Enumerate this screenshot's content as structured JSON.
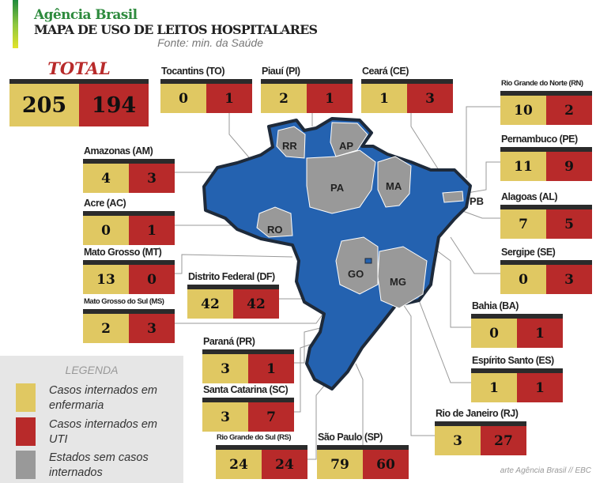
{
  "header": {
    "brand": "Agência Brasil",
    "title": "MAPA DE USO DE LEITOS HOSPITALARES",
    "source": "Fonte: min. da Saúde"
  },
  "total": {
    "label": "TOTAL",
    "enfermaria": 205,
    "uti": 194
  },
  "states": [
    {
      "code": "TO",
      "label": "Tocantins (TO)",
      "enfermaria": 0,
      "uti": 1
    },
    {
      "code": "PI",
      "label": "Piauí (PI)",
      "enfermaria": 2,
      "uti": 1
    },
    {
      "code": "CE",
      "label": "Ceará (CE)",
      "enfermaria": 1,
      "uti": 3
    },
    {
      "code": "RN",
      "label": "Rio Grande do Norte (RN)",
      "enfermaria": 10,
      "uti": 2
    },
    {
      "code": "PE",
      "label": "Pernambuco (PE)",
      "enfermaria": 11,
      "uti": 9
    },
    {
      "code": "AL",
      "label": "Alagoas (AL)",
      "enfermaria": 7,
      "uti": 5
    },
    {
      "code": "SE",
      "label": "Sergipe (SE)",
      "enfermaria": 0,
      "uti": 3
    },
    {
      "code": "BA",
      "label": "Bahia (BA)",
      "enfermaria": 0,
      "uti": 1
    },
    {
      "code": "ES",
      "label": "Espírito Santo (ES)",
      "enfermaria": 1,
      "uti": 1
    },
    {
      "code": "RJ",
      "label": "Rio de Janeiro (RJ)",
      "enfermaria": 3,
      "uti": 27
    },
    {
      "code": "SP",
      "label": "São Paulo (SP)",
      "enfermaria": 79,
      "uti": 60
    },
    {
      "code": "RS",
      "label": "Rio Grande do Sul (RS)",
      "enfermaria": 24,
      "uti": 24
    },
    {
      "code": "SC",
      "label": "Santa Catarina (SC)",
      "enfermaria": 3,
      "uti": 7
    },
    {
      "code": "PR",
      "label": "Paraná (PR)",
      "enfermaria": 3,
      "uti": 1
    },
    {
      "code": "DF",
      "label": "Distrito Federal (DF)",
      "enfermaria": 42,
      "uti": 42
    },
    {
      "code": "MS",
      "label": "Mato Grosso do Sul (MS)",
      "enfermaria": 2,
      "uti": 3
    },
    {
      "code": "MT",
      "label": "Mato Grosso (MT)",
      "enfermaria": 13,
      "uti": 0
    },
    {
      "code": "AC",
      "label": "Acre (AC)",
      "enfermaria": 0,
      "uti": 1
    },
    {
      "code": "AM",
      "label": "Amazonas (AM)",
      "enfermaria": 4,
      "uti": 3
    }
  ],
  "map": {
    "states_without_cases": [
      "RR",
      "AP",
      "PA",
      "MA",
      "RO",
      "GO",
      "MG",
      "PB"
    ],
    "colors": {
      "with_cases": "#2462b0",
      "without_cases": "#999999",
      "border": "#1e2a3a"
    }
  },
  "legend": {
    "title": "LEGENDA",
    "items": [
      {
        "label": "Casos internados em enfermaria",
        "color": "#e0c862"
      },
      {
        "label": "Casos internados em UTI",
        "color": "#b82a2a"
      },
      {
        "label": "Estados sem casos internados",
        "color": "#999999"
      }
    ]
  },
  "credit": "arte Agência Brasil // EBC"
}
